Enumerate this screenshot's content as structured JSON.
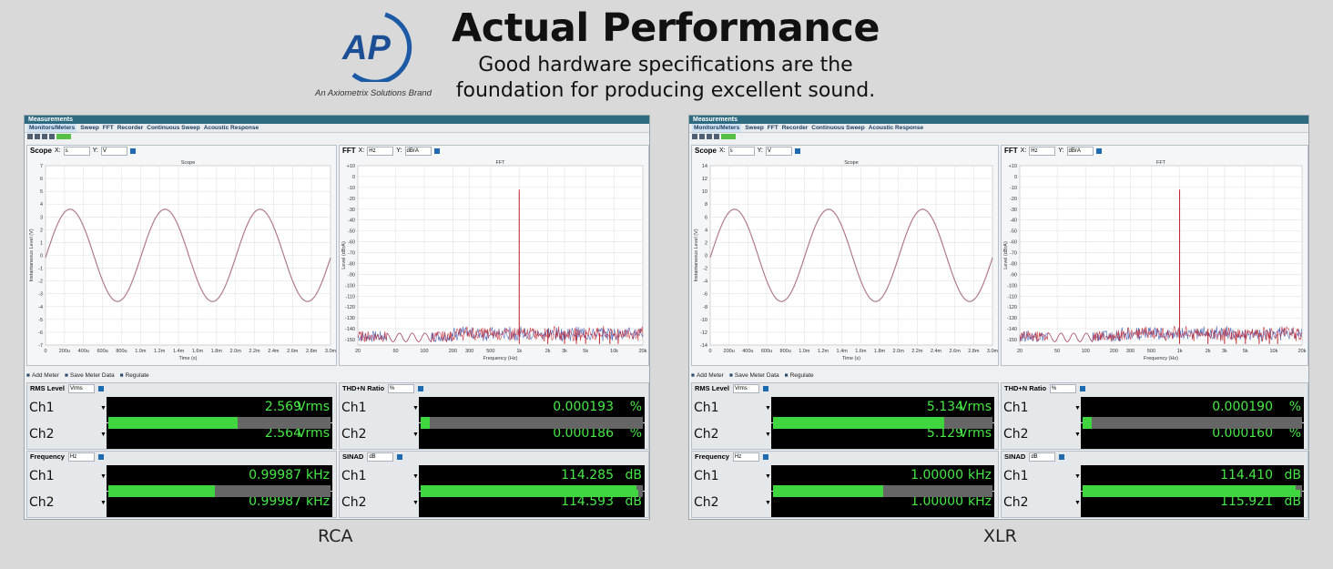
{
  "header": {
    "logo_text": "AP",
    "tagline": "An Axiometrix Solutions Brand",
    "title": "Actual Performance",
    "subtitle_line1": "Good hardware specifications are the",
    "subtitle_line2": "foundation for producing excellent sound."
  },
  "colors": {
    "logo_blue": "#1c5aa6",
    "meter_green": "#46e846",
    "titlebar": "#2f6b80",
    "scope_trace": "#b07a8a",
    "fft_red": "#c0202a",
    "fft_blue": "#3050b0"
  },
  "common": {
    "window_title": "Measurements",
    "tabs": [
      "Monitors/Meters",
      "Sweep",
      "FFT",
      "Recorder",
      "Continuous Sweep",
      "Acoustic Response"
    ],
    "toolbar": [
      "Add Meter",
      "Save Meter Data",
      "Regulate"
    ],
    "scope_title": "Scope",
    "scope_x_unit": "s",
    "scope_y_unit": "V",
    "scope_plot_title": "Scope",
    "scope_xlabel": "Time (s)",
    "scope_ylabel": "Instantaneous Level (V)",
    "fft_title": "FFT",
    "fft_x_unit": "Hz",
    "fft_y_unit": "dBrA",
    "fft_plot_title": "FFT",
    "fft_xlabel": "Frequency (Hz)",
    "fft_ylabel": "Level (dBrA)",
    "scope_xticks": [
      "0",
      "200u",
      "400u",
      "600u",
      "800u",
      "1.0m",
      "1.2m",
      "1.4m",
      "1.6m",
      "1.8m",
      "2.0m",
      "2.2m",
      "2.4m",
      "2.6m",
      "2.8m",
      "3.0m"
    ],
    "fft_xticks": [
      "20",
      "50",
      "100",
      "200",
      "300",
      "500",
      "1k",
      "2k",
      "3k",
      "5k",
      "10k",
      "20k"
    ],
    "fft_yticks": [
      "+10",
      "0",
      "-10",
      "-20",
      "-30",
      "-40",
      "-50",
      "-60",
      "-70",
      "-80",
      "-90",
      "-100",
      "-110",
      "-120",
      "-130",
      "-140",
      "-150"
    ],
    "meters": {
      "rms": {
        "title": "RMS Level",
        "unit_sel": "Vrms"
      },
      "thd": {
        "title": "THD+N Ratio",
        "unit_sel": "%"
      },
      "freq": {
        "title": "Frequency",
        "unit_sel": "Hz"
      },
      "sinad": {
        "title": "SINAD",
        "unit_sel": "dB"
      }
    },
    "ch1": "Ch1",
    "ch2": "Ch2"
  },
  "panels": [
    {
      "label": "RCA",
      "scope_yticks": [
        "7",
        "6",
        "5",
        "4",
        "3",
        "2",
        "1",
        "0",
        "-1",
        "-2",
        "-3",
        "-4",
        "-5",
        "-6",
        "-7"
      ],
      "scope_amplitude": 3.6,
      "scope_ylim": [
        -7,
        7
      ],
      "rms": {
        "ch1": "2.569",
        "ch2": "2.564",
        "unit": "Vrms",
        "fill1": 0.58,
        "fill2": 0.58
      },
      "thd": {
        "ch1": "0.000193",
        "ch2": "0.000186",
        "unit": "%",
        "fill1": 0.04,
        "fill2": 0.04
      },
      "freq": {
        "ch1": "0.99987",
        "ch2": "0.99987",
        "unit": "kHz",
        "fill1": 0.48,
        "fill2": 0.48
      },
      "sinad": {
        "ch1": "114.285",
        "ch2": "114.593",
        "unit": "dB",
        "fill1": 0.97,
        "fill2": 0.98
      }
    },
    {
      "label": "XLR",
      "scope_yticks": [
        "14",
        "12",
        "10",
        "8",
        "6",
        "4",
        "2",
        "0",
        "-2",
        "-4",
        "-6",
        "-8",
        "-10",
        "-12",
        "-14"
      ],
      "scope_amplitude": 7.2,
      "scope_ylim": [
        -14,
        14
      ],
      "rms": {
        "ch1": "5.134",
        "ch2": "5.129",
        "unit": "Vrms",
        "fill1": 0.78,
        "fill2": 0.78
      },
      "thd": {
        "ch1": "0.000190",
        "ch2": "0.000160",
        "unit": "%",
        "fill1": 0.04,
        "fill2": 0.04
      },
      "freq": {
        "ch1": "1.00000",
        "ch2": "1.00000",
        "unit": "kHz",
        "fill1": 0.5,
        "fill2": 0.5
      },
      "sinad": {
        "ch1": "114.410",
        "ch2": "115.921",
        "unit": "dB",
        "fill1": 0.97,
        "fill2": 0.99
      }
    }
  ]
}
